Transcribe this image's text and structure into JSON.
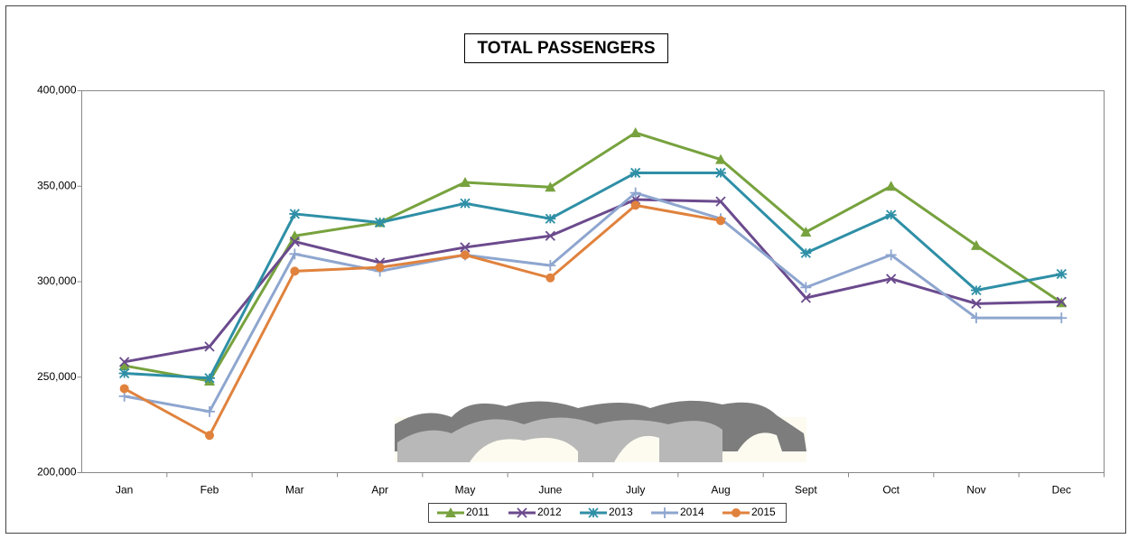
{
  "chart_data": {
    "type": "line",
    "title": "TOTAL PASSENGERS",
    "categories": [
      "Jan",
      "Feb",
      "Mar",
      "Apr",
      "May",
      "June",
      "July",
      "Aug",
      "Sept",
      "Oct",
      "Nov",
      "Dec"
    ],
    "ylim": [
      200000,
      400000
    ],
    "yticks": [
      {
        "value": 200000,
        "label": "200,000"
      },
      {
        "value": 250000,
        "label": "250,000"
      },
      {
        "value": 300000,
        "label": "300,000"
      },
      {
        "value": 350000,
        "label": "350,000"
      },
      {
        "value": 400000,
        "label": "400,000"
      }
    ],
    "grid": false,
    "legend": "bottom",
    "series": [
      {
        "name": "2011",
        "color": "#77a23e",
        "marker": "triangle",
        "values": [
          256000,
          248000,
          324000,
          331000,
          352000,
          349500,
          378000,
          364000,
          326000,
          350000,
          319000,
          289000
        ]
      },
      {
        "name": "2012",
        "color": "#6b4a8d",
        "marker": "x",
        "values": [
          258000,
          266000,
          321000,
          310000,
          318000,
          324000,
          343000,
          342000,
          291500,
          301500,
          288500,
          289500
        ]
      },
      {
        "name": "2013",
        "color": "#2e8fa6",
        "marker": "star",
        "values": [
          252000,
          249500,
          335500,
          331000,
          341000,
          333000,
          357000,
          357000,
          315000,
          335000,
          295500,
          304000
        ]
      },
      {
        "name": "2014",
        "color": "#8ea6cf",
        "marker": "plus",
        "values": [
          240000,
          232000,
          314500,
          305500,
          314000,
          308500,
          346500,
          333000,
          297000,
          314000,
          281000,
          281000
        ]
      },
      {
        "name": "2015",
        "color": "#e0823d",
        "marker": "circle",
        "values": [
          244000,
          219500,
          305500,
          307500,
          314000,
          302000,
          340000,
          332000,
          null,
          null,
          null,
          null
        ]
      }
    ]
  }
}
